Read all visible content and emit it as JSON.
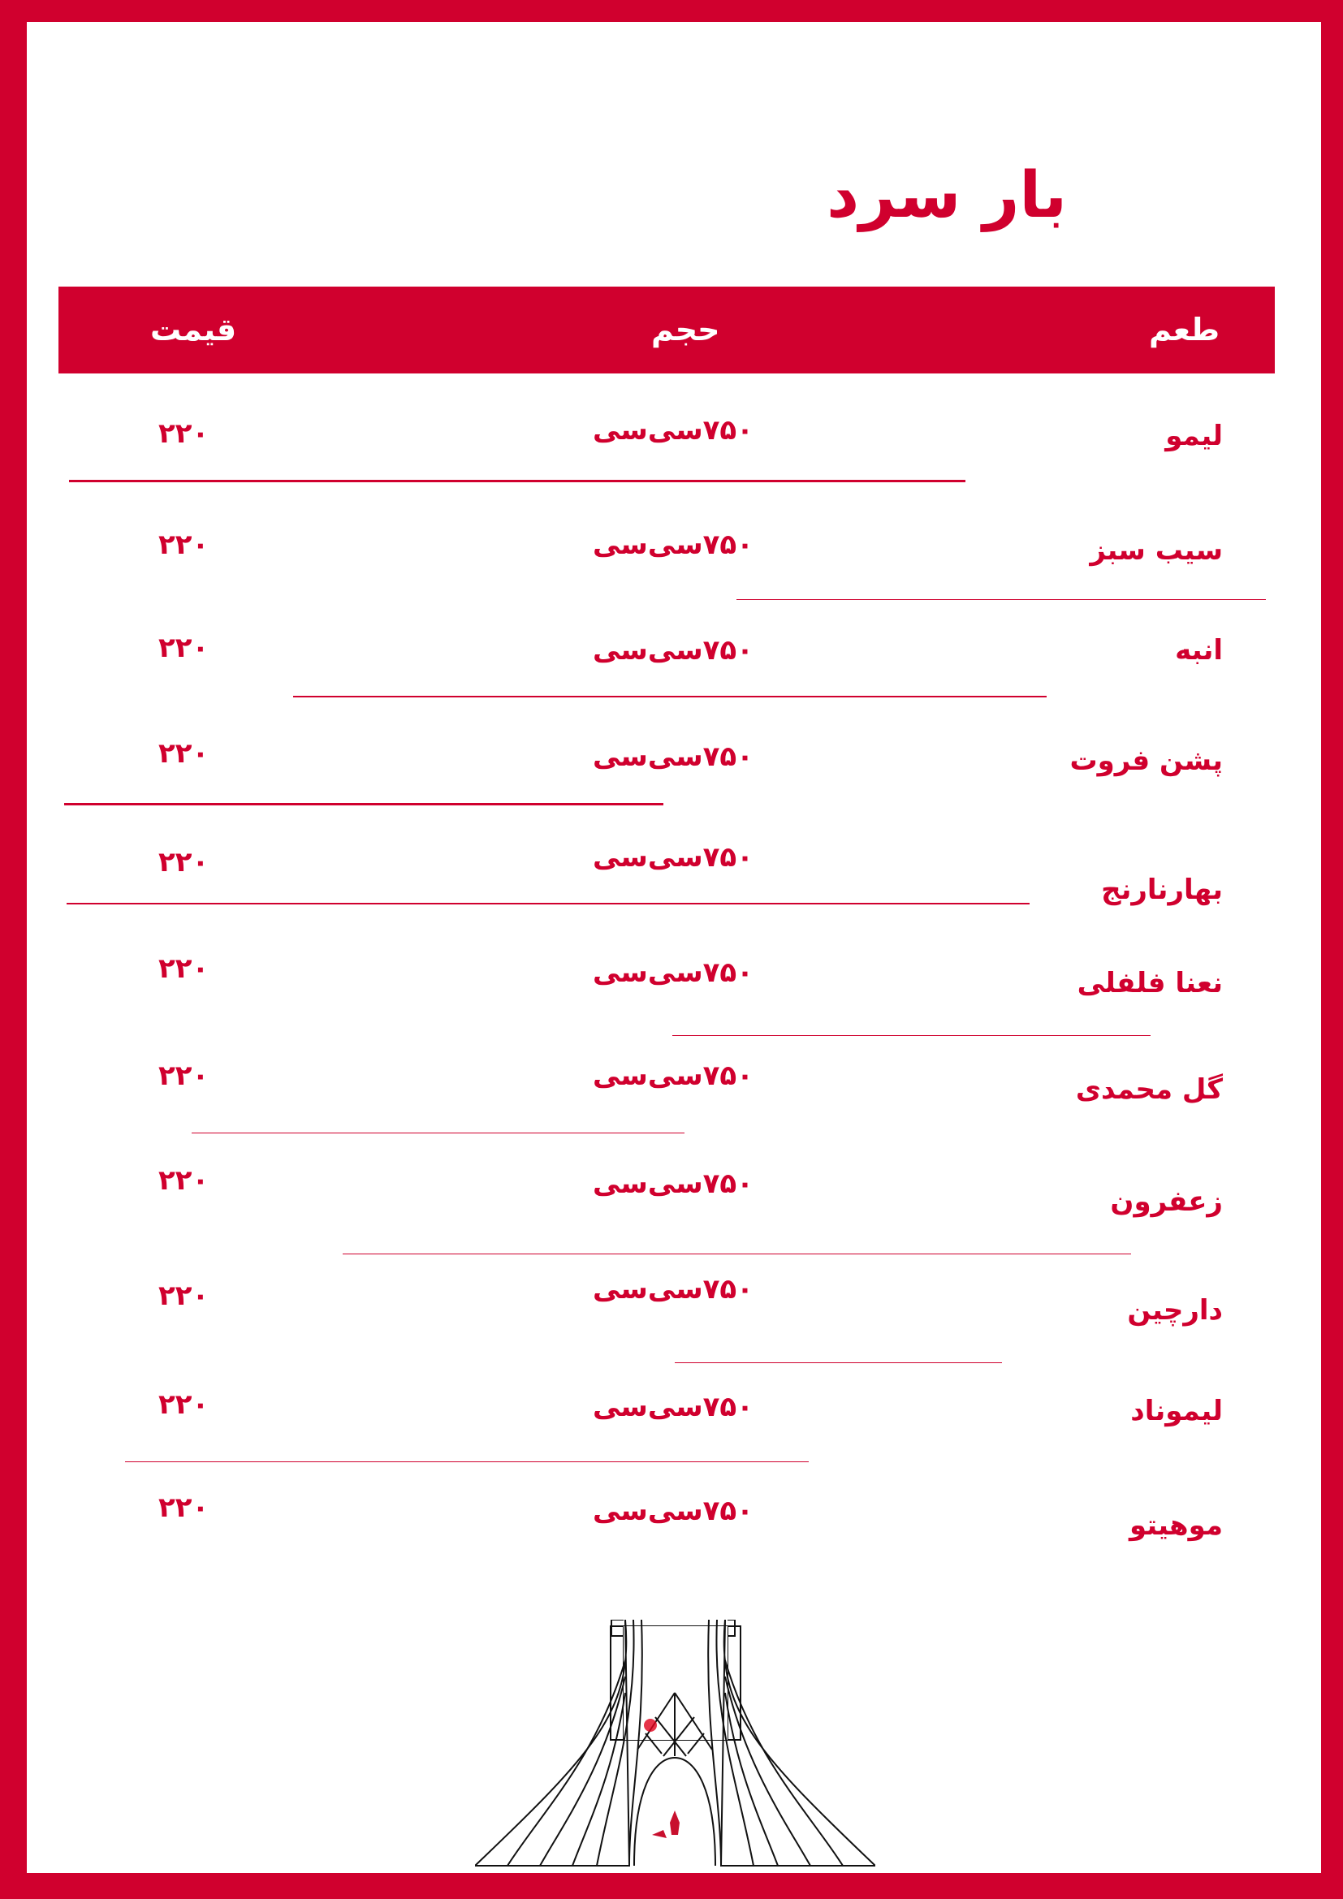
{
  "title": "بار سرد",
  "header": {
    "flavor": "طعم",
    "volume": "حجم",
    "price": "قیمت"
  },
  "items": [
    {
      "name": "لیمو",
      "volume": "۷۵۰سی‌سی",
      "price": "۲۲۰"
    },
    {
      "name": "سیب سبز",
      "volume": "۷۵۰سی‌سی",
      "price": "۲۲۰"
    },
    {
      "name": "انبه",
      "volume": "۷۵۰سی‌سی",
      "price": "۲۲۰"
    },
    {
      "name": "پشن فروت",
      "volume": "۷۵۰سی‌سی",
      "price": "۲۲۰"
    },
    {
      "name": "بهارنارنج",
      "volume": "۷۵۰سی‌سی",
      "price": "۲۲۰"
    },
    {
      "name": "نعنا فلفلی",
      "volume": "۷۵۰سی‌سی",
      "price": "۲۲۰"
    },
    {
      "name": "گل محمدی",
      "volume": "۷۵۰سی‌سی",
      "price": "۲۲۰"
    },
    {
      "name": "زعفرون",
      "volume": "۷۵۰سی‌سی",
      "price": "۲۲۰"
    },
    {
      "name": "دارچین",
      "volume": "۷۵۰سی‌سی",
      "price": "۲۲۰"
    },
    {
      "name": "لیموناد",
      "volume": "۷۵۰سی‌سی",
      "price": "۲۲۰"
    },
    {
      "name": "موهیتو",
      "volume": "۷۵۰سی‌سی",
      "price": "۲۲۰"
    }
  ],
  "colors": {
    "brand": "#d0002e",
    "illustration": "#111111"
  },
  "illustration": "azadi-tower"
}
